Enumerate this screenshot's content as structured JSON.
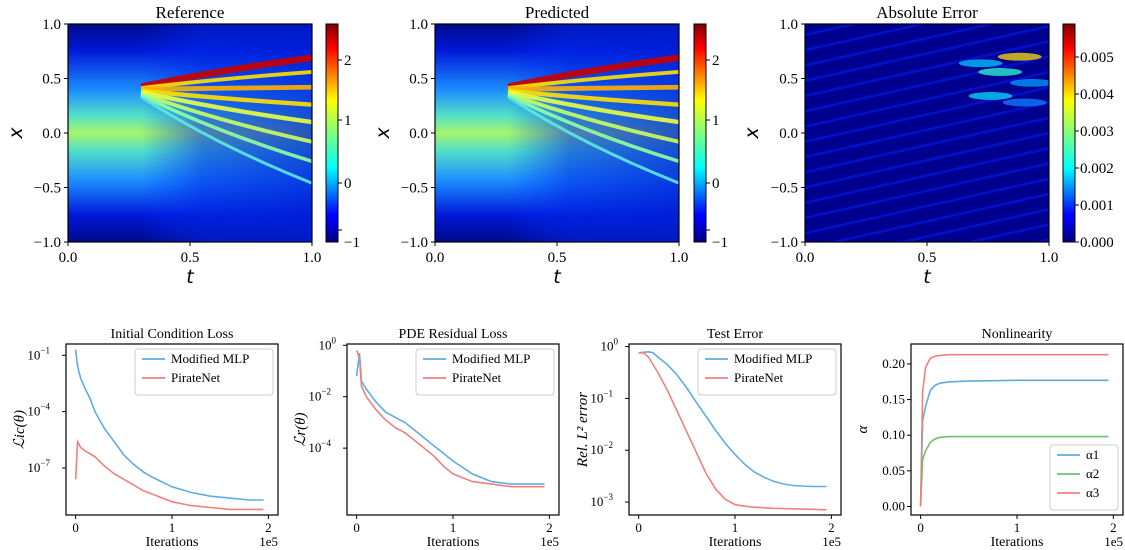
{
  "chart_data": [
    {
      "type": "heatmap",
      "title": "Reference",
      "xlabel": "t",
      "ylabel": "x",
      "xlim": [
        0,
        1
      ],
      "ylim": [
        -1,
        1
      ],
      "xticks": [
        "0.0",
        "0.5",
        "1.0"
      ],
      "yticks": [
        "−1.0",
        "−0.5",
        "0.0",
        "0.5",
        "1.0"
      ],
      "colorbar": {
        "range": [
          -1.15,
          2.6
        ],
        "ticks": [
          -1,
          0,
          1,
          2
        ],
        "tick_labels": [
          "−1",
          "0",
          "1",
          "2"
        ]
      },
      "colormap": "jet"
    },
    {
      "type": "heatmap",
      "title": "Predicted",
      "xlabel": "t",
      "ylabel": "x",
      "xlim": [
        0,
        1
      ],
      "ylim": [
        -1,
        1
      ],
      "xticks": [
        "0.0",
        "0.5",
        "1.0"
      ],
      "yticks": [
        "−1.0",
        "−0.5",
        "0.0",
        "0.5",
        "1.0"
      ],
      "colorbar": {
        "range": [
          -1.15,
          2.6
        ],
        "ticks": [
          -1,
          0,
          1,
          2
        ],
        "tick_labels": [
          "−1",
          "0",
          "1",
          "2"
        ]
      },
      "colormap": "jet"
    },
    {
      "type": "heatmap",
      "title": "Absolute Error",
      "xlabel": "t",
      "ylabel": "x",
      "xlim": [
        0,
        1
      ],
      "ylim": [
        -1,
        1
      ],
      "xticks": [
        "0.0",
        "0.5",
        "1.0"
      ],
      "yticks": [
        "−1.0",
        "−0.5",
        "0.0",
        "0.5",
        "1.0"
      ],
      "colorbar": {
        "range": [
          0,
          0.0059
        ],
        "ticks": [
          0,
          0.001,
          0.002,
          0.003,
          0.004,
          0.005
        ],
        "tick_labels": [
          "0.000",
          "0.001",
          "0.002",
          "0.003",
          "0.004",
          "0.005"
        ]
      },
      "colormap": "jet"
    },
    {
      "type": "line",
      "title": "Initial Condition Loss",
      "xlabel": "Iterations",
      "ylabel": "ℒic(θ)",
      "x_multiplier_label": "1e5",
      "yscale": "log",
      "xlim": [
        -0.1,
        2.1
      ],
      "ylim_log10": [
        -9.5,
        -0.4
      ],
      "xticks": [
        0,
        1,
        2
      ],
      "yticks_exp": [
        -1,
        -4,
        -7
      ],
      "legend": "top-right",
      "series": [
        {
          "name": "Modified MLP",
          "color": "#5dade2",
          "x": [
            0,
            0.02,
            0.05,
            0.1,
            0.15,
            0.2,
            0.3,
            0.4,
            0.5,
            0.6,
            0.7,
            0.8,
            1.0,
            1.2,
            1.4,
            1.6,
            1.8,
            1.95
          ],
          "log10y": [
            -0.7,
            -1.6,
            -2.2,
            -2.8,
            -3.3,
            -4.0,
            -4.9,
            -5.6,
            -6.3,
            -6.8,
            -7.2,
            -7.5,
            -8.0,
            -8.3,
            -8.5,
            -8.6,
            -8.7,
            -8.7
          ]
        },
        {
          "name": "PirateNet",
          "color": "#f08080",
          "x": [
            0,
            0.02,
            0.05,
            0.1,
            0.2,
            0.3,
            0.4,
            0.5,
            0.6,
            0.7,
            0.8,
            1.0,
            1.2,
            1.4,
            1.6,
            1.8,
            1.95
          ],
          "log10y": [
            -7.6,
            -5.6,
            -5.9,
            -6.1,
            -6.4,
            -6.9,
            -7.3,
            -7.6,
            -7.9,
            -8.2,
            -8.4,
            -8.8,
            -9.0,
            -9.1,
            -9.2,
            -9.2,
            -9.2
          ]
        }
      ]
    },
    {
      "type": "line",
      "title": "PDE Residual Loss",
      "xlabel": "Iterations",
      "ylabel": "ℒr(θ)",
      "x_multiplier_label": "1e5",
      "yscale": "log",
      "xlim": [
        -0.1,
        2.1
      ],
      "ylim_log10": [
        -6.6,
        0.05
      ],
      "xticks": [
        0,
        1,
        2
      ],
      "yticks_exp": [
        0,
        -2,
        -4
      ],
      "legend": "top-right",
      "series": [
        {
          "name": "Modified MLP",
          "color": "#5dade2",
          "x": [
            0,
            0.03,
            0.05,
            0.1,
            0.2,
            0.3,
            0.4,
            0.5,
            0.6,
            0.7,
            0.8,
            0.9,
            1.0,
            1.2,
            1.4,
            1.6,
            1.8,
            1.95
          ],
          "log10y": [
            -1.2,
            -0.3,
            -1.4,
            -1.7,
            -2.2,
            -2.6,
            -2.8,
            -3.0,
            -3.3,
            -3.6,
            -3.9,
            -4.2,
            -4.5,
            -5.0,
            -5.3,
            -5.4,
            -5.4,
            -5.4
          ]
        },
        {
          "name": "PirateNet",
          "color": "#f08080",
          "x": [
            0,
            0.03,
            0.05,
            0.1,
            0.2,
            0.3,
            0.4,
            0.5,
            0.6,
            0.7,
            0.8,
            0.9,
            1.0,
            1.2,
            1.4,
            1.6,
            1.8,
            1.95
          ],
          "log10y": [
            -0.2,
            -0.5,
            -1.6,
            -2.0,
            -2.5,
            -2.9,
            -3.2,
            -3.4,
            -3.7,
            -4.0,
            -4.3,
            -4.7,
            -5.0,
            -5.3,
            -5.4,
            -5.5,
            -5.5,
            -5.5
          ]
        }
      ]
    },
    {
      "type": "line",
      "title": "Test Error",
      "xlabel": "Iterations",
      "ylabel": "Rel. L² error",
      "x_multiplier_label": "1e5",
      "yscale": "log",
      "xlim": [
        -0.1,
        2.1
      ],
      "ylim_log10": [
        -3.25,
        0.05
      ],
      "xticks": [
        0,
        1,
        2
      ],
      "yticks_exp": [
        0,
        -1,
        -2,
        -3
      ],
      "legend": "top-right",
      "series": [
        {
          "name": "Modified MLP",
          "color": "#5dade2",
          "x": [
            0,
            0.1,
            0.15,
            0.2,
            0.3,
            0.4,
            0.5,
            0.6,
            0.7,
            0.8,
            0.9,
            1.0,
            1.1,
            1.2,
            1.3,
            1.4,
            1.5,
            1.6,
            1.8,
            1.95
          ],
          "log10y": [
            -0.12,
            -0.1,
            -0.12,
            -0.2,
            -0.35,
            -0.55,
            -0.8,
            -1.08,
            -1.35,
            -1.62,
            -1.87,
            -2.08,
            -2.27,
            -2.42,
            -2.52,
            -2.6,
            -2.65,
            -2.68,
            -2.7,
            -2.7
          ]
        },
        {
          "name": "PirateNet",
          "color": "#f08080",
          "x": [
            0,
            0.05,
            0.1,
            0.2,
            0.3,
            0.4,
            0.5,
            0.6,
            0.7,
            0.8,
            0.9,
            1.0,
            1.1,
            1.2,
            1.4,
            1.6,
            1.8,
            1.95
          ],
          "log10y": [
            -0.12,
            -0.12,
            -0.2,
            -0.5,
            -0.85,
            -1.25,
            -1.65,
            -2.05,
            -2.45,
            -2.75,
            -2.95,
            -3.05,
            -3.08,
            -3.1,
            -3.12,
            -3.13,
            -3.14,
            -3.15
          ]
        }
      ]
    },
    {
      "type": "line",
      "title": "Nonlinearity",
      "xlabel": "Iterations",
      "ylabel": "α",
      "x_multiplier_label": "1e5",
      "xlim": [
        -0.1,
        2.1
      ],
      "ylim": [
        -0.012,
        0.228
      ],
      "xticks": [
        0,
        1,
        2
      ],
      "yticks": [
        0.0,
        0.05,
        0.1,
        0.15,
        0.2
      ],
      "ytick_labels": [
        "0.00",
        "0.05",
        "0.10",
        "0.15",
        "0.20"
      ],
      "legend": "bottom-right",
      "series": [
        {
          "name": "α1",
          "color": "#5dade2",
          "x": [
            0,
            0.02,
            0.05,
            0.1,
            0.15,
            0.2,
            0.3,
            0.5,
            1.0,
            1.5,
            1.95
          ],
          "y": [
            0.0,
            0.12,
            0.14,
            0.163,
            0.17,
            0.173,
            0.175,
            0.176,
            0.177,
            0.177,
            0.177
          ]
        },
        {
          "name": "α2",
          "color": "#6fbf73",
          "x": [
            0,
            0.02,
            0.05,
            0.1,
            0.15,
            0.2,
            0.3,
            0.5,
            1.0,
            1.5,
            1.95
          ],
          "y": [
            0.0,
            0.065,
            0.078,
            0.09,
            0.095,
            0.097,
            0.098,
            0.098,
            0.098,
            0.098,
            0.098
          ]
        },
        {
          "name": "α3",
          "color": "#f08080",
          "x": [
            0,
            0.02,
            0.05,
            0.1,
            0.15,
            0.2,
            0.3,
            0.5,
            1.0,
            1.5,
            1.95
          ],
          "y": [
            0.0,
            0.16,
            0.195,
            0.208,
            0.211,
            0.212,
            0.213,
            0.213,
            0.213,
            0.213,
            0.213
          ]
        }
      ]
    }
  ]
}
